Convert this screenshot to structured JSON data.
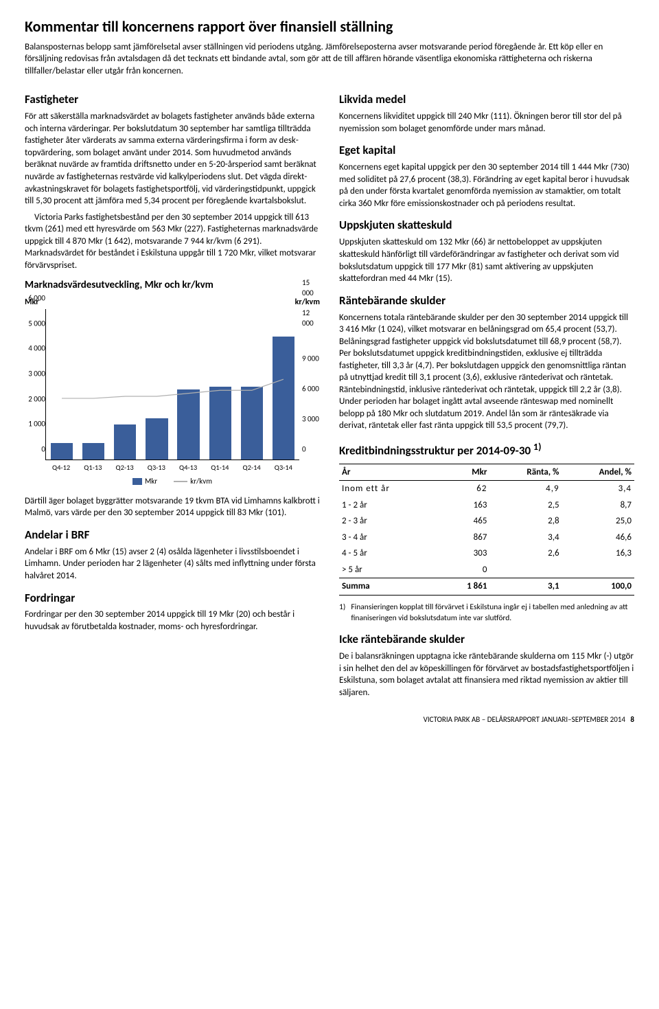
{
  "title": "Kommentar till koncernens rapport över finansiell ställning",
  "intro": "Balansposternas belopp samt jämförelsetal avser ställningen vid periodens utgång. Jämförelseposterna avser motsvarande period föregående år. Ett köp eller en försäljning redovisas från avtalsdagen då det tecknats ett bindande avtal, som gör att de till affären hörande väsentliga ekonomiska rättigheterna och riskerna tillfaller/belastar eller utgår från koncernen.",
  "left": {
    "fastigheter_h": "Fastigheter",
    "fastigheter_p1": "För att säkerställa marknadsvärdet av bolagets fastigheter används både externa och interna värderingar. Per bokslut­datum 30 september har samtliga tillträdda fastigheter åter värderats av samma externa värderingsfirma i form av desk­topvärdering, som bolaget använt under 2014. Som huvud­metod används beräknat nuvärde av framtida driftsnetto under en 5-20-årsperiod samt beräknat nuvärde av fastig­heternas restvärde vid kalkylperiodens slut. Det vägda direkt­avkastningskravet för bolagets fastighetsportfölj, vid värde­ringstidpunkt, uppgick till 5,30 procent att jämföra med 5,34 procent per föregående kvartalsbokslut.",
    "fastigheter_p2": "Victoria Parks fastighetsbestånd per den 30 september 2014 uppgick till 613 tkvm (261) med ett hyresvärde om 563 Mkr (227). Fastigheternas marknadsvärde uppgick till 4 870 Mkr (1 642), motsvarande 7 944 kr/kvm (6 291). Marknadsvärdet för beståndet i Eskilstuna uppgår till 1 720 Mkr, vilket motsvarar förvärvspriset.",
    "chart_h": "Marknadsvärdesutveckling, Mkr och kr/kvm",
    "below_chart": "Därtill äger bolaget byggrätter motsvarande 19 tkvm BTA vid Limhamns kalkbrott i Malmö, vars värde per den 30 september 2014 uppgick till 83 Mkr (101).",
    "andelar_h": "Andelar i BRF",
    "andelar_p": "Andelar i BRF om 6 Mkr (15) avser 2 (4) osålda lägenheter i livsstilsboendet i Limhamn. Under perioden har 2 lägenheter (4) sålts med inflyttning under första halvåret 2014.",
    "fordringar_h": "Fordringar",
    "fordringar_p": "Fordringar per den 30 september 2014 uppgick till 19 Mkr (20) och består i huvudsak av förutbetalda kostnader, moms- och hyresfordringar."
  },
  "right": {
    "likvida_h": "Likvida medel",
    "likvida_p": "Koncernens likviditet uppgick till 240 Mkr (111). Ökningen beror till stor del på nyemission som bolaget genomförde under mars månad.",
    "eget_h": "Eget kapital",
    "eget_p": "Koncernens eget kapital uppgick per den 30 september 2014 till 1 444 Mkr (730) med soliditet på 27,6 procent (38,3). Förändring av eget kapital beror i huvudsak på den under första kvartalet genomförda nyemission av stamaktier, om totalt cirka 360 Mkr före emissionskostnader och på periodens resultat.",
    "uppskjuten_h": "Uppskjuten skatteskuld",
    "uppskjuten_p": "Uppskjuten skatteskuld om 132 Mkr (66) är nettobeloppet av uppskjuten skatteskuld hänförligt till värdeförändringar av fastigheter och derivat som vid bokslutsdatum uppgick till 177 Mkr (81) samt aktivering av uppskjuten skattefordran med 44 Mkr (15).",
    "rante_h": "Räntebärande skulder",
    "rante_p": "Koncernens totala räntebärande skulder per den 30 septem­ber 2014 uppgick till 3 416 Mkr (1 024), vilket motsvarar en belåningsgrad om 65,4 procent (53,7). Belåningsgrad fastig­heter uppgick vid bokslutsdatumet till 68,9 procent (58,7). Per bokslutsdatumet uppgick kreditbindningstiden, exklusive ej tillträdda fastigheter, till 3,3 år (4,7). Per bokslutdagen uppgick den genomsnittliga räntan på utnyttjad kredit till 3,1 procent (3,6), exklusive räntederivat och räntetak. Ränte­bindningstid, inklusive räntederivat och räntetak, uppgick till 2,2 år (3,8). Under perioden har bolaget ingått avtal avseende ränteswap med nominellt belopp på 180 Mkr och slutdatum 2019. Andel lån som är räntesäkrade via derivat, räntetak eller fast ränta uppgick till 53,5 procent (79,7).",
    "kredit_h": "Kreditbindningsstruktur per 2014-09-30",
    "kredit_sup": "1)",
    "footnote_num": "1)",
    "footnote": "Finansieringen kopplat till förvärvet i Eskilstuna ingår ej i tabellen med anledning av att finaniseringen vid bokslutsdatum inte var slutförd.",
    "icke_h": "Icke räntebärande skulder",
    "icke_p": "De i balansräkningen upptagna icke räntebärande skulderna om 115 Mkr (-) utgör i sin helhet den del av köpeskillingen för förvärvet av bostadsfastighetsportföljen i Eskilstuna, som bolaget avtalat att finansiera med riktad nyemission av aktier till säljaren."
  },
  "chart": {
    "left_label": "Mkr",
    "right_label": "kr/kvm",
    "categories": [
      "Q4-12",
      "Q1-13",
      "Q2-13",
      "Q3-13",
      "Q4-13",
      "Q1-14",
      "Q2-14",
      "Q3-14"
    ],
    "bar_values": [
      650,
      650,
      1400,
      1650,
      2800,
      2900,
      2900,
      4900
    ],
    "line_values": [
      6100,
      6100,
      6300,
      6300,
      6600,
      6900,
      6900,
      8000
    ],
    "y_left_max": 6000,
    "y_left_ticks": [
      0,
      1000,
      2000,
      3000,
      4000,
      5000,
      6000
    ],
    "y_left_tick_labels": [
      "0",
      "1 000",
      "2 000",
      "3 000",
      "4 000",
      "5 000",
      "6 000"
    ],
    "y_right_max": 15000,
    "y_right_ticks": [
      0,
      3000,
      6000,
      9000,
      12000,
      15000
    ],
    "y_right_tick_labels": [
      "0",
      "3 000",
      "6 000",
      "9 000",
      "12 000",
      "15 000"
    ],
    "bar_color": "#3a5e9a",
    "line_color": "#b0b0b0",
    "legend_bar": "Mkr",
    "legend_line": "kr/kvm"
  },
  "table": {
    "headers": [
      "År",
      "Mkr",
      "Ränta, %",
      "Andel, %"
    ],
    "rows": [
      [
        "Inom ett år",
        "62",
        "4,9",
        "3,4"
      ],
      [
        "1 - 2 år",
        "163",
        "2,5",
        "8,7"
      ],
      [
        "2 - 3 år",
        "465",
        "2,8",
        "25,0"
      ],
      [
        "3 - 4 år",
        "867",
        "3,4",
        "46,6"
      ],
      [
        "4 - 5 år",
        "303",
        "2,6",
        "16,3"
      ],
      [
        "> 5 år",
        "0",
        "",
        ""
      ]
    ],
    "total": [
      "Summa",
      "1 861",
      "3,1",
      "100,0"
    ]
  },
  "footer": "VICTORIA PARK AB – DELÅRSRAPPORT JANUARI–SEPTEMBER 2014",
  "page_num": "8"
}
